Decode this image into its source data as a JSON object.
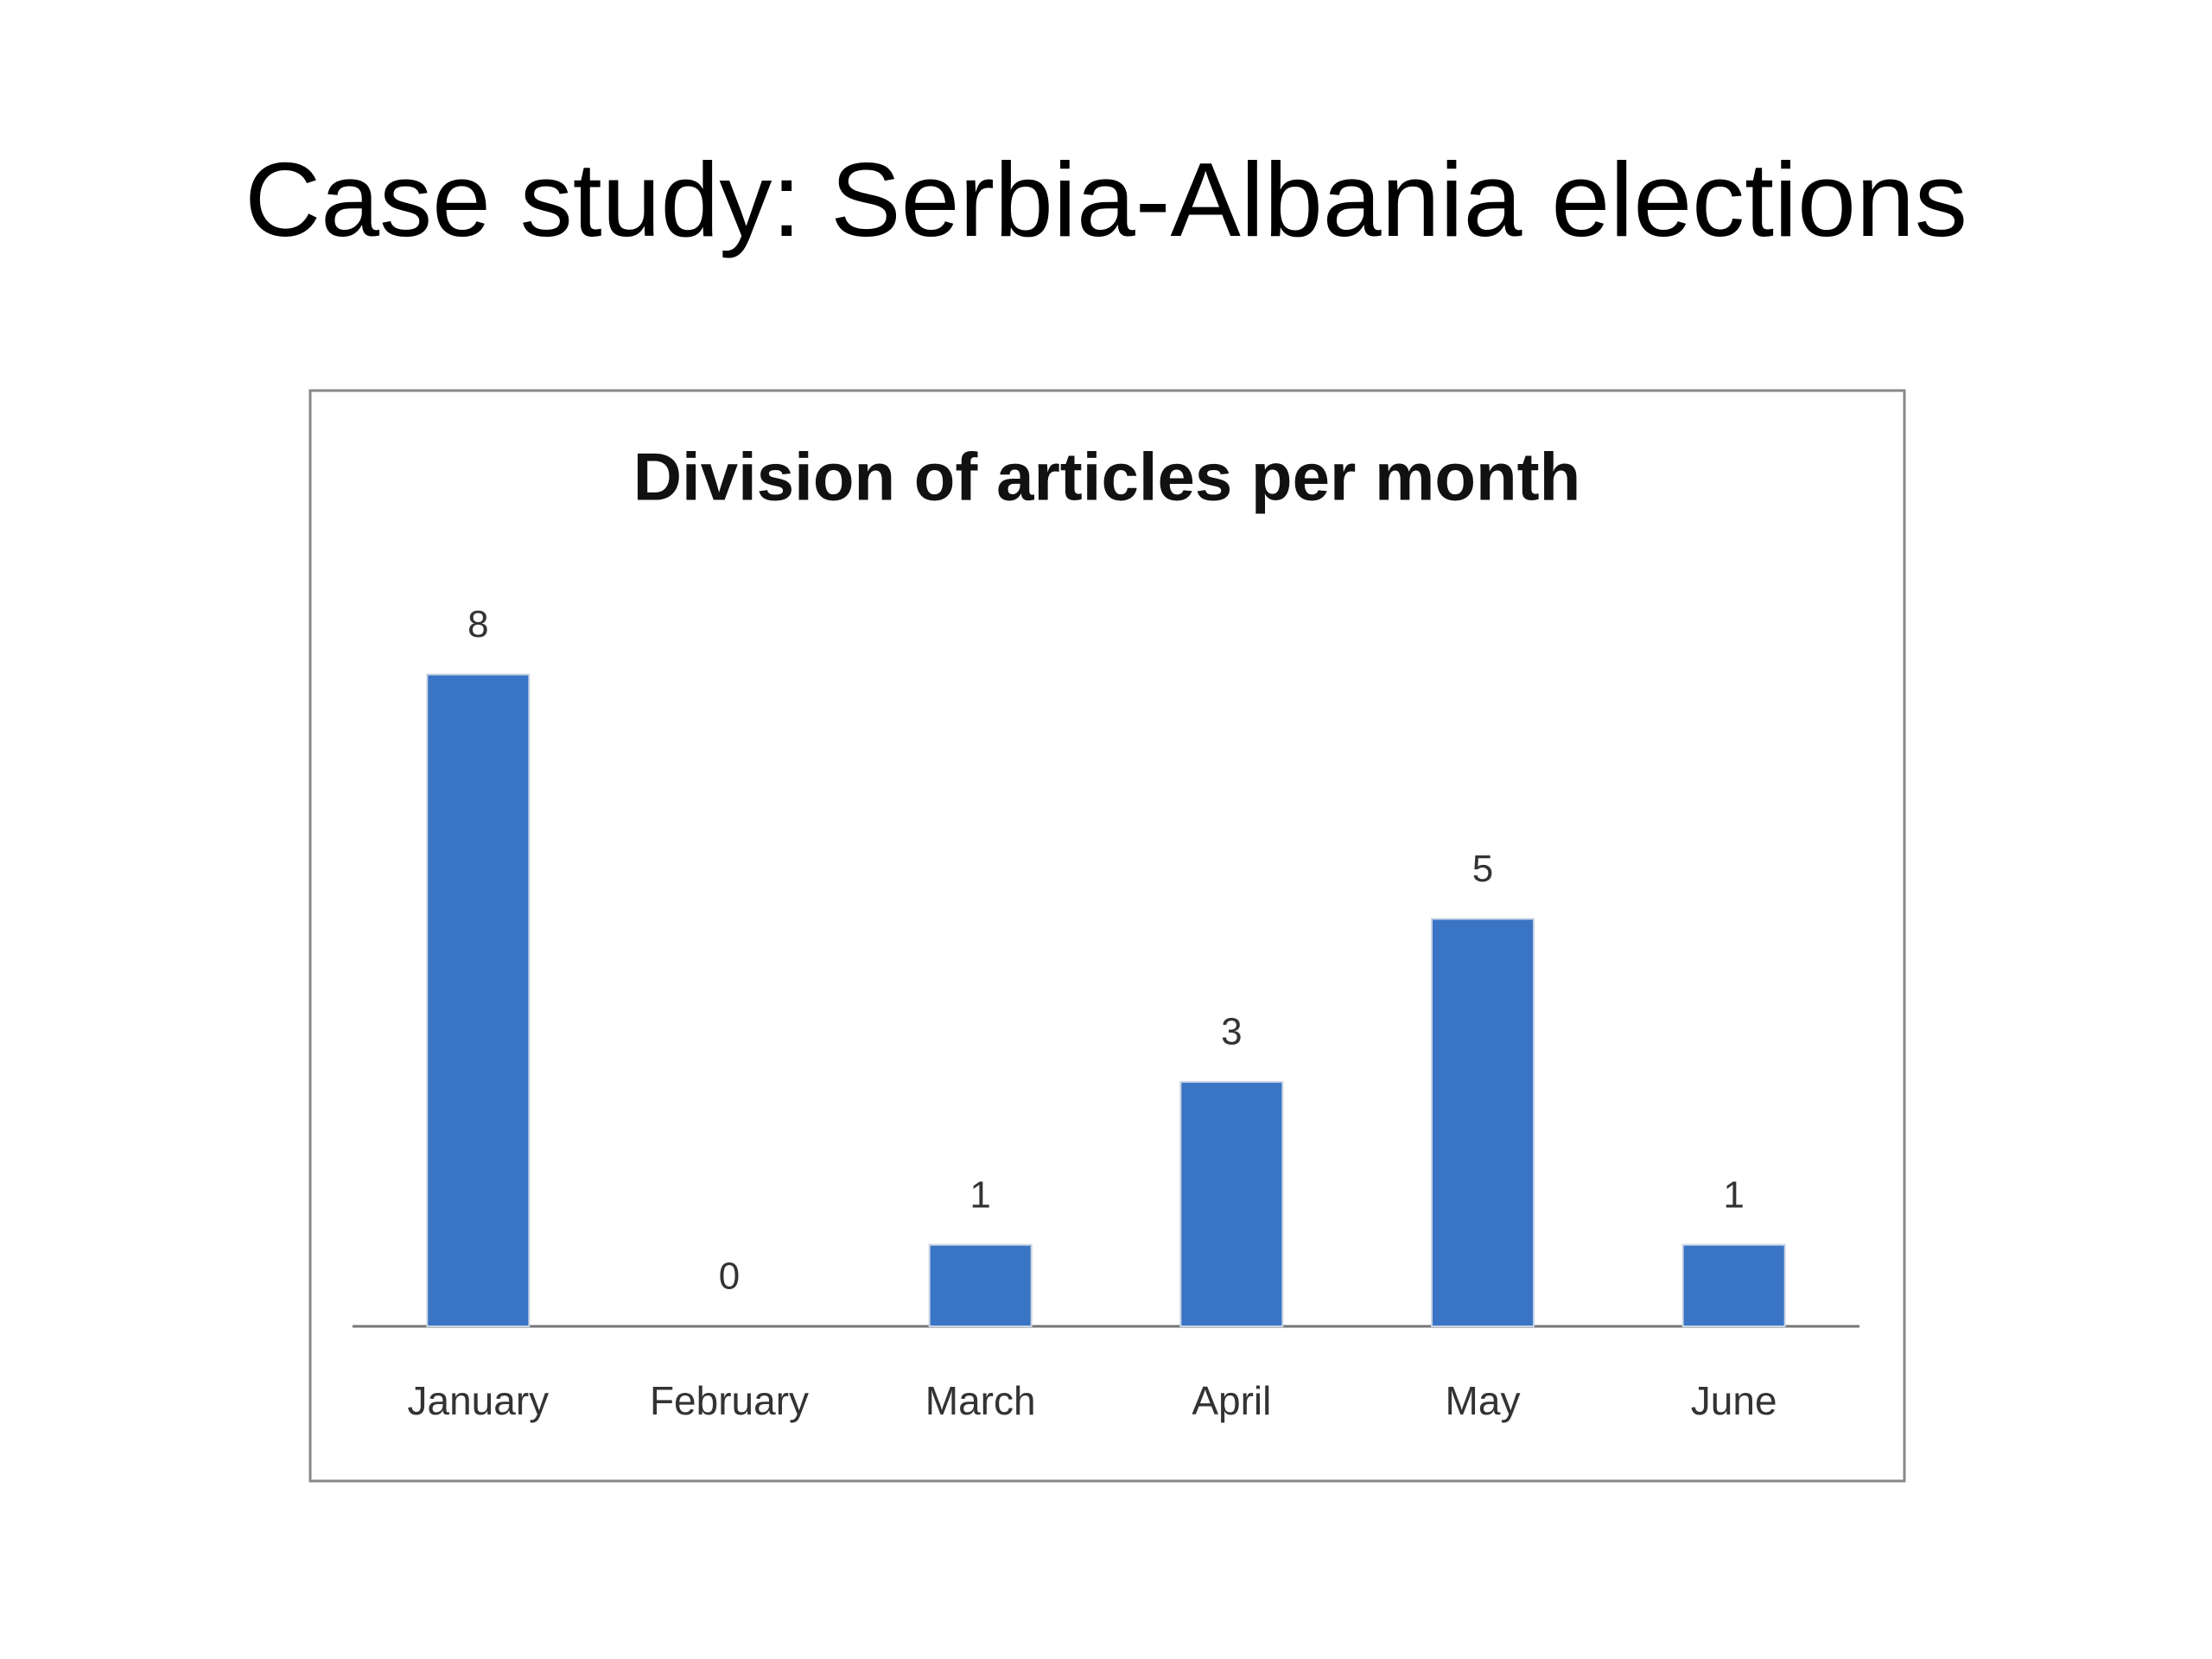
{
  "slide_title": "Case study: Serbia-Albania elections",
  "chart_data": {
    "type": "bar",
    "title": "Division of articles per month",
    "categories": [
      "January",
      "February",
      "March",
      "April",
      "May",
      "June"
    ],
    "values": [
      8,
      0,
      1,
      3,
      5,
      1
    ],
    "color": "#3a74c4"
  }
}
